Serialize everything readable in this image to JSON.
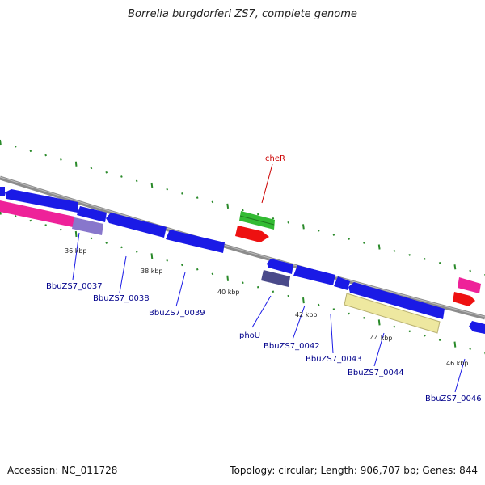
{
  "title": "Borrelia burgdorferi ZS7, complete genome",
  "footer": {
    "accession": "Accession: NC_011728",
    "summary": "Topology: circular; Length: 906,707 bp; Genes: 844"
  },
  "colors": {
    "backbone": "#8c8c8c",
    "cds": "#1a1ae6",
    "gene_label": "#00008b",
    "rna_label": "#cc0000",
    "tick": "#2a8a2a",
    "green": "#33bb33",
    "red": "#ee1111",
    "magenta": "#ee2299",
    "lavender": "#8877cc",
    "slate": "#4a4a8a",
    "khaki": "#eee8a0"
  },
  "scale_labels": [
    "36 kbp",
    "38 kbp",
    "40 kbp",
    "42 kbp",
    "44 kbp",
    "46 kbp"
  ],
  "gene_labels": [
    {
      "id": "bbuzs7-0037",
      "text": "BbuZS7_0037",
      "kind": "gene"
    },
    {
      "id": "bbuzs7-0038",
      "text": "BbuZS7_0038",
      "kind": "gene"
    },
    {
      "id": "bbuzs7-0039",
      "text": "BbuZS7_0039",
      "kind": "gene"
    },
    {
      "id": "phou",
      "text": "phoU",
      "kind": "gene"
    },
    {
      "id": "bbuzs7-0042",
      "text": "BbuZS7_0042",
      "kind": "gene"
    },
    {
      "id": "bbuzs7-0043",
      "text": "BbuZS7_0043",
      "kind": "gene"
    },
    {
      "id": "bbuzs7-0044",
      "text": "BbuZS7_0044",
      "kind": "gene"
    },
    {
      "id": "bbuzs7-0046",
      "text": "BbuZS7_0046",
      "kind": "gene"
    },
    {
      "id": "cher",
      "text": "cheR",
      "kind": "rna"
    }
  ]
}
